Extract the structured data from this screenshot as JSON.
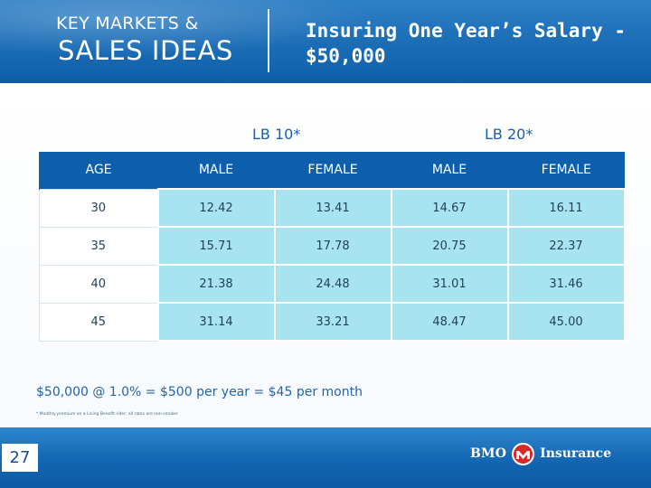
{
  "header": {
    "section_line1": "KEY MARKETS &",
    "section_line2": "SALES IDEAS",
    "title": "Insuring One Year’s Salary - $50,000"
  },
  "groups": {
    "lb10": "LB 10*",
    "lb20": "LB 20*"
  },
  "table": {
    "headers": [
      "AGE",
      "MALE",
      "FEMALE",
      "MALE",
      "FEMALE"
    ],
    "rows": [
      [
        "30",
        "12.42",
        "13.41",
        "14.67",
        "16.11"
      ],
      [
        "35",
        "15.71",
        "17.78",
        "20.75",
        "22.37"
      ],
      [
        "40",
        "21.38",
        "24.48",
        "31.01",
        "31.46"
      ],
      [
        "45",
        "31.14",
        "33.21",
        "48.47",
        "45.00"
      ]
    ]
  },
  "formula": "$50,000 @ 1.0% = $500 per year = $45 per month",
  "footnote": "* Monthly premium on a Living Benefit rider; all rates are non-smoker",
  "footer": {
    "page_number": "27",
    "brand_left": "BMO",
    "brand_right": "Insurance"
  },
  "colors": {
    "header_blue": "#1d6fb8",
    "table_header": "#0e5fab",
    "cell_fill": "#a8e4ef",
    "accent_text": "#1a5ea8",
    "brand_red": "#d42a2a"
  }
}
